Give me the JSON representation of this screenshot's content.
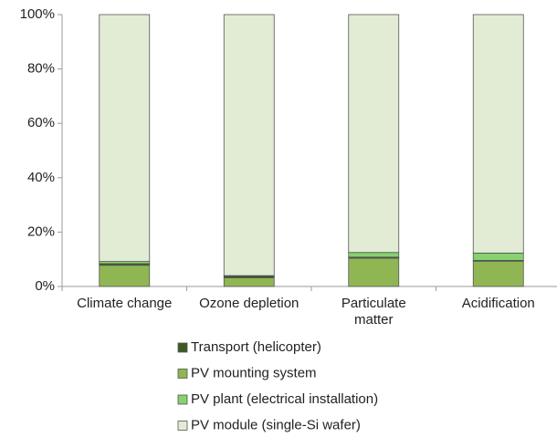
{
  "chart_data": {
    "type": "stacked_bar",
    "categories": [
      "Climate change",
      "Ozone depletion",
      "Particulate matter",
      "Acidification"
    ],
    "series": [
      {
        "name": "Transport (helicopter)",
        "color": "#3a5a22",
        "values": [
          0.6,
          0.7,
          0.4,
          0.3
        ]
      },
      {
        "name": "PV mounting system",
        "color": "#8fb652",
        "values": [
          7.8,
          3.2,
          10.4,
          9.3
        ]
      },
      {
        "name": "PV plant (electrical installation)",
        "color": "#84d36e",
        "values": [
          0.8,
          0.1,
          1.7,
          2.7
        ]
      },
      {
        "name": "PV module (single-Si wafer)",
        "color": "#e2ecd4",
        "values": [
          90.8,
          96.0,
          87.5,
          87.7
        ]
      }
    ],
    "ylim": [
      0,
      100
    ],
    "yticks": [
      {
        "value": 0,
        "label": "0%"
      },
      {
        "value": 20,
        "label": "20%"
      },
      {
        "value": 40,
        "label": "40%"
      },
      {
        "value": 60,
        "label": "60%"
      },
      {
        "value": 80,
        "label": "80%"
      },
      {
        "value": 100,
        "label": "100%"
      }
    ]
  }
}
